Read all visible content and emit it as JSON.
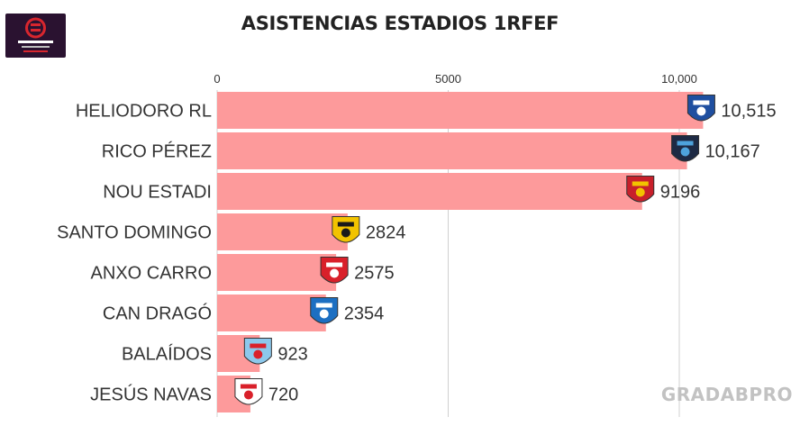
{
  "title": "ASISTENCIAS ESTADIOS 1RFEF",
  "watermark": "GRADABPRO",
  "logo": {
    "name": "primera-federacion-logo",
    "text": "PRIMERA FEDERACIÓN VERSUS"
  },
  "colors": {
    "bar": "#fd9a9b",
    "grid": "#d0d0d0",
    "logo_bg": "#2a1230",
    "logo_accent": "#d8262e"
  },
  "chart_data": {
    "type": "bar",
    "orientation": "horizontal",
    "title": "ASISTENCIAS ESTADIOS 1RFEF",
    "categories": [
      "HELIODORO RL",
      "RICO PÉREZ",
      "NOU ESTADI",
      "SANTO DOMINGO",
      "ANXO CARRO",
      "CAN DRAGÓ",
      "BALAÍDOS",
      "JESÚS NAVAS"
    ],
    "values": [
      10515,
      10167,
      9196,
      2824,
      2575,
      2354,
      923,
      720
    ],
    "value_labels": [
      "10,515",
      "10,167",
      "9196",
      "2824",
      "2575",
      "2354",
      "923",
      "720"
    ],
    "xlim": [
      0,
      10000
    ],
    "x_ticks": [
      0,
      5000,
      10000
    ],
    "x_tick_labels": [
      "0",
      "5000",
      "10,000"
    ],
    "axis_position": "top",
    "grid": true,
    "legend": "none",
    "bar_color": "#fd9a9b",
    "team_badges": [
      "tenerife-badge-icon",
      "hercules-badge-icon",
      "gimnastic-badge-icon",
      "alcorcon-badge-icon",
      "lugo-badge-icon",
      "sabadell-badge-icon",
      "celta-b-badge-icon",
      "sevilla-atletico-badge-icon"
    ]
  }
}
